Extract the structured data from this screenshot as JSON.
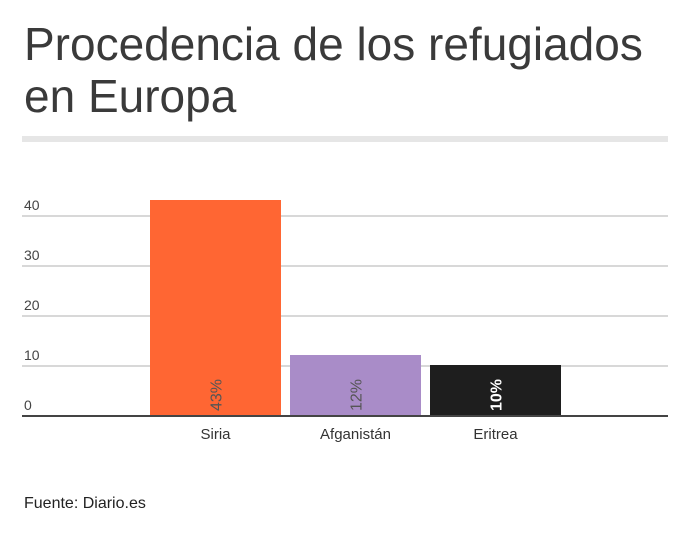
{
  "chart_data": {
    "type": "bar",
    "title": "Procedencia de los refugiados en Europa",
    "categories": [
      "Siria",
      "Afganistán",
      "Eritrea"
    ],
    "values": [
      43,
      12,
      10
    ],
    "data_labels": [
      "43%",
      "12%",
      "10%"
    ],
    "colors": [
      "#ff6633",
      "#a98cc8",
      "#1e1e1e"
    ],
    "label_colors": [
      "#555555",
      "#555555",
      "#ffffff"
    ],
    "yticks": [
      0,
      10,
      20,
      30,
      40
    ],
    "ylim": [
      0,
      40
    ],
    "grid": true,
    "xlabel": "",
    "ylabel": ""
  },
  "source": "Fuente: Diario.es"
}
